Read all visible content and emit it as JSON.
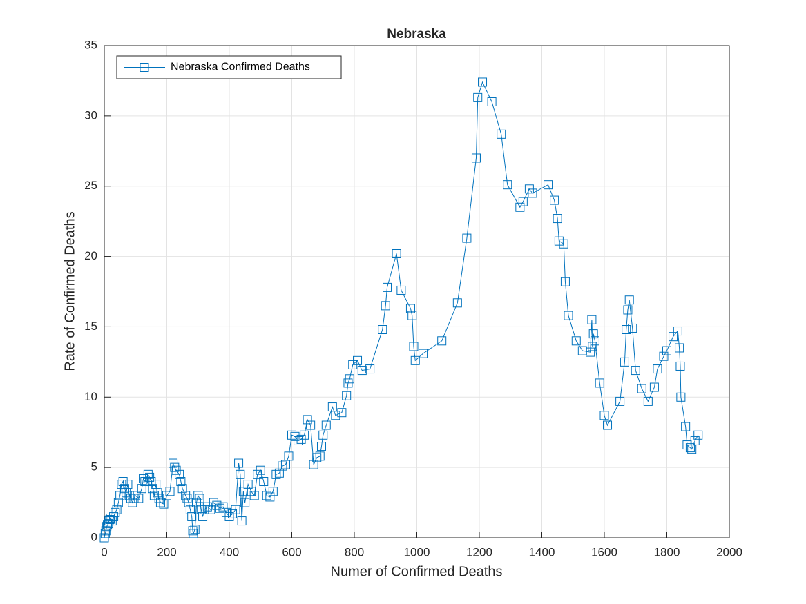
{
  "chart_data": {
    "type": "line",
    "title": "Nebraska",
    "x_label": "Numer of Confirmed Deaths",
    "y_label": "Rate of Confirmed Deaths",
    "xlim": [
      0,
      2000
    ],
    "xticks": [
      0,
      200,
      400,
      600,
      800,
      1000,
      1200,
      1400,
      1600,
      1800,
      2000
    ],
    "ylim": [
      0,
      35
    ],
    "yticks": [
      0,
      5,
      10,
      15,
      20,
      25,
      30,
      35
    ],
    "grid": true,
    "legend": "northwest",
    "marker": "square",
    "series": [
      {
        "name": "Nebraska Confirmed Deaths",
        "color": "#0072bd",
        "x": [
          0,
          3,
          5,
          8,
          10,
          13,
          15,
          18,
          20,
          25,
          30,
          35,
          40,
          45,
          50,
          55,
          60,
          65,
          70,
          75,
          80,
          85,
          90,
          95,
          100,
          110,
          120,
          125,
          130,
          140,
          145,
          150,
          155,
          160,
          165,
          170,
          175,
          180,
          190,
          200,
          210,
          220,
          225,
          230,
          240,
          245,
          250,
          260,
          265,
          270,
          275,
          280,
          283,
          285,
          290,
          295,
          300,
          305,
          310,
          315,
          320,
          330,
          340,
          350,
          360,
          370,
          380,
          390,
          400,
          410,
          420,
          430,
          435,
          440,
          445,
          450,
          460,
          470,
          480,
          490,
          500,
          510,
          520,
          530,
          540,
          550,
          560,
          570,
          580,
          590,
          600,
          610,
          620,
          630,
          640,
          650,
          660,
          670,
          680,
          690,
          695,
          700,
          710,
          730,
          740,
          760,
          775,
          780,
          785,
          795,
          810,
          825,
          850,
          890,
          900,
          905,
          935,
          950,
          980,
          985,
          990,
          995,
          1020,
          1080,
          1130,
          1160,
          1190,
          1195,
          1210,
          1240,
          1270,
          1290,
          1330,
          1340,
          1360,
          1370,
          1420,
          1440,
          1450,
          1455,
          1470,
          1475,
          1485,
          1510,
          1530,
          1555,
          1560,
          1562,
          1565,
          1570,
          1585,
          1600,
          1610,
          1650,
          1665,
          1670,
          1675,
          1680,
          1690,
          1700,
          1720,
          1740,
          1760,
          1770,
          1790,
          1800,
          1820,
          1835,
          1840,
          1843,
          1845,
          1860,
          1865,
          1875,
          1880,
          1890,
          1900
        ],
        "values": [
          0,
          0.3,
          0.5,
          0.8,
          0.9,
          1.0,
          1.2,
          1.3,
          1.4,
          1.2,
          1.5,
          1.8,
          2.0,
          2.5,
          3.0,
          3.8,
          4.0,
          3.5,
          3.2,
          3.8,
          3.0,
          2.8,
          2.5,
          2.8,
          3.0,
          2.8,
          3.5,
          4.2,
          4.0,
          4.5,
          4.3,
          4.0,
          3.5,
          3.0,
          3.8,
          3.2,
          2.8,
          2.5,
          2.4,
          3.0,
          3.3,
          5.3,
          5.0,
          4.8,
          4.5,
          4.0,
          3.5,
          3.0,
          2.8,
          2.5,
          2.0,
          1.5,
          0.5,
          0.3,
          0.6,
          2.5,
          3.0,
          2.8,
          2.0,
          1.5,
          2.0,
          2.2,
          2.0,
          2.5,
          2.3,
          2.1,
          2.2,
          1.8,
          1.5,
          1.7,
          2.0,
          5.3,
          4.5,
          1.2,
          3.3,
          2.5,
          3.8,
          3.3,
          3.0,
          4.5,
          4.8,
          4.0,
          3.0,
          2.9,
          3.3,
          4.5,
          4.6,
          5.1,
          5.2,
          5.8,
          7.3,
          7.2,
          6.9,
          7.0,
          7.3,
          8.4,
          8.0,
          5.2,
          5.7,
          5.8,
          6.5,
          7.3,
          8.0,
          9.3,
          8.7,
          8.9,
          10.1,
          11.0,
          11.3,
          12.3,
          12.6,
          11.9,
          12.0,
          14.8,
          16.5,
          17.8,
          20.2,
          17.6,
          16.3,
          15.8,
          13.6,
          12.6,
          13.1,
          14.0,
          16.7,
          21.3,
          27.0,
          31.3,
          32.4,
          31.0,
          28.7,
          25.1,
          23.5,
          23.9,
          24.8,
          24.5,
          25.1,
          24.0,
          22.7,
          21.1,
          20.9,
          18.2,
          15.8,
          14.0,
          13.3,
          13.2,
          15.5,
          13.6,
          14.5,
          14.0,
          11.0,
          8.7,
          8.0,
          9.7,
          12.5,
          14.8,
          16.2,
          16.9,
          14.9,
          11.9,
          10.6,
          9.7,
          10.7,
          12.0,
          12.9,
          13.3,
          14.3,
          14.7,
          13.5,
          12.2,
          10.0,
          7.9,
          6.6,
          6.4,
          6.3,
          6.9,
          7.3
        ]
      }
    ]
  }
}
